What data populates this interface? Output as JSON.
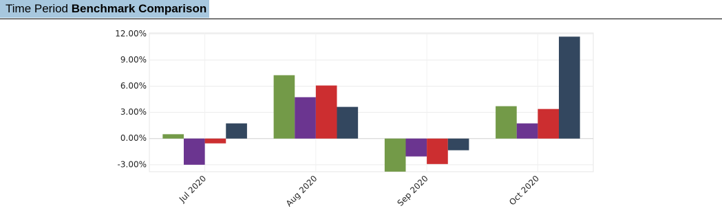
{
  "header": {
    "label": "Time Period",
    "title": "Benchmark Comparison"
  },
  "chart_data": {
    "type": "bar",
    "categories": [
      "Jul 2020",
      "Aug 2020",
      "Sep 2020",
      "Oct 2020"
    ],
    "series": [
      {
        "color": "#739a48",
        "values": [
          0.5,
          7.26,
          -3.79,
          3.71
        ]
      },
      {
        "color": "#6b3590",
        "values": [
          -3.0,
          4.74,
          -2.05,
          1.74
        ]
      },
      {
        "color": "#cc2e30",
        "values": [
          -0.55,
          6.08,
          -2.92,
          3.39
        ]
      },
      {
        "color": "#33475f",
        "values": [
          1.74,
          3.63,
          -1.34,
          11.68
        ]
      }
    ],
    "ylim": [
      -3.8,
      12.1
    ],
    "yticks": [
      {
        "value": -3,
        "label": "-3.00%"
      },
      {
        "value": 0,
        "label": "0.00%"
      },
      {
        "value": 3,
        "label": "3.00%"
      },
      {
        "value": 6,
        "label": "6.00%"
      },
      {
        "value": 9,
        "label": "9.00%"
      },
      {
        "value": 12,
        "label": "12.00%"
      }
    ],
    "grid": true
  }
}
